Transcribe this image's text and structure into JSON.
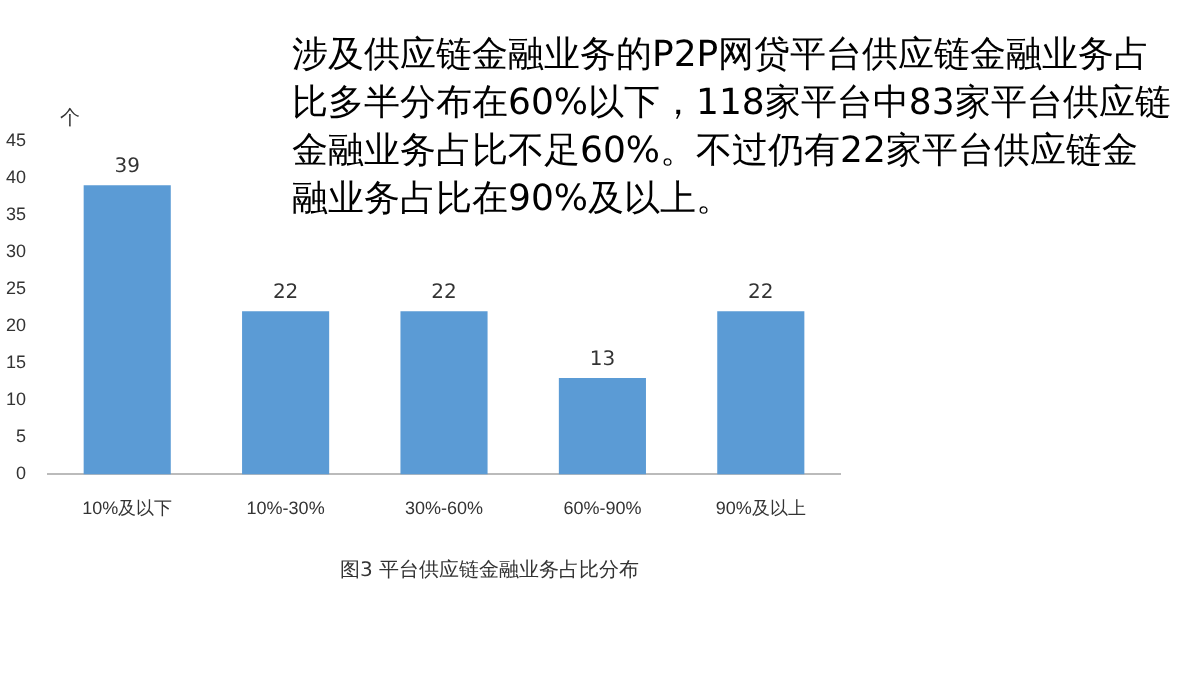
{
  "chart_data": {
    "type": "bar",
    "title": "涉及供应链金融业务的P2P网贷平台供应链金融业务占比多半分布在60%以下，118家平台中83家平台供应链金融业务占比不足60%。不过仍有22家平台供应链金融业务占比在90%及以上。",
    "ylabel": "个",
    "categories": [
      "10%及以下",
      "10%-30%",
      "30%-60%",
      "60%-90%",
      "90%及以上"
    ],
    "series": [
      {
        "color": "#5b9bd5",
        "values": [
          39,
          22,
          22,
          13,
          22
        ]
      }
    ],
    "ylim": [
      0,
      45
    ],
    "yticks": [
      0,
      5,
      10,
      15,
      20,
      25,
      30,
      35,
      40,
      45
    ],
    "grid": false,
    "legend": false,
    "data_labels": true,
    "annotations": [
      "图3  平台供应链金融业务占比分布"
    ]
  }
}
